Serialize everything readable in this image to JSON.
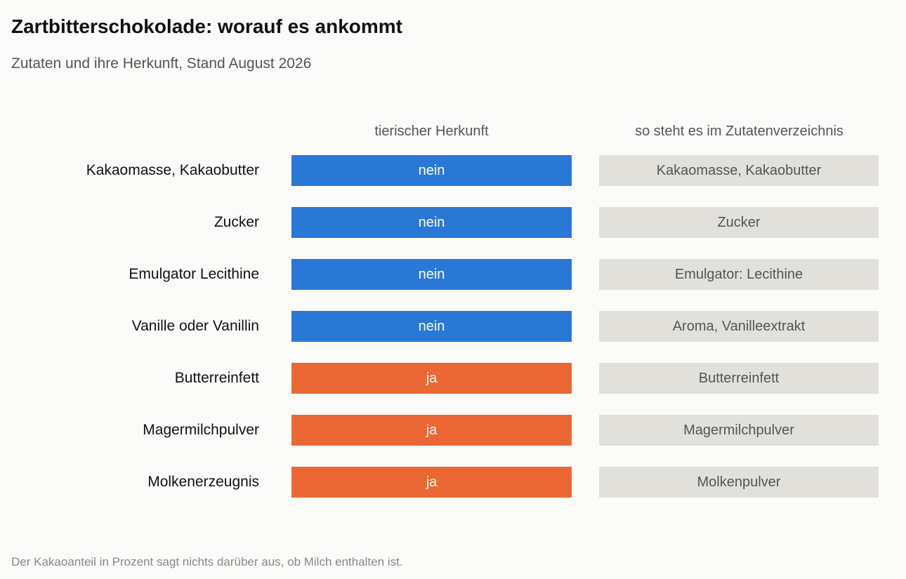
{
  "title": "Zartbitterschokolade: worauf es ankommt",
  "subtitle": "Zutaten und ihre Herkunft, Stand August 2026",
  "footnote": "Der Kakaoanteil in Prozent sagt nichts darüber aus, ob Milch enthalten ist.",
  "colors": {
    "nein": "#2a78d6",
    "ja": "#eb6834",
    "list_cell": "#e1e0da"
  },
  "chart_data": {
    "type": "table",
    "columns": [
      "tierischer Herkunft",
      "so steht es im Zutatenverzeichnis"
    ],
    "rows": [
      {
        "label": "Kakaomasse, Kakaobutter",
        "origin": "nein",
        "listing": "Kakaomasse, Kakaobutter"
      },
      {
        "label": "Zucker",
        "origin": "nein",
        "listing": "Zucker"
      },
      {
        "label": "Emulgator Lecithine",
        "origin": "nein",
        "listing": "Emulgator: Lecithine"
      },
      {
        "label": "Vanille oder Vanillin",
        "origin": "nein",
        "listing": "Aroma, Vanilleextrakt"
      },
      {
        "label": "Butterreinfett",
        "origin": "ja",
        "listing": "Butterreinfett"
      },
      {
        "label": "Magermilchpulver",
        "origin": "ja",
        "listing": "Magermilchpulver"
      },
      {
        "label": "Molkenerzeugnis",
        "origin": "ja",
        "listing": "Molkenpulver"
      }
    ]
  }
}
